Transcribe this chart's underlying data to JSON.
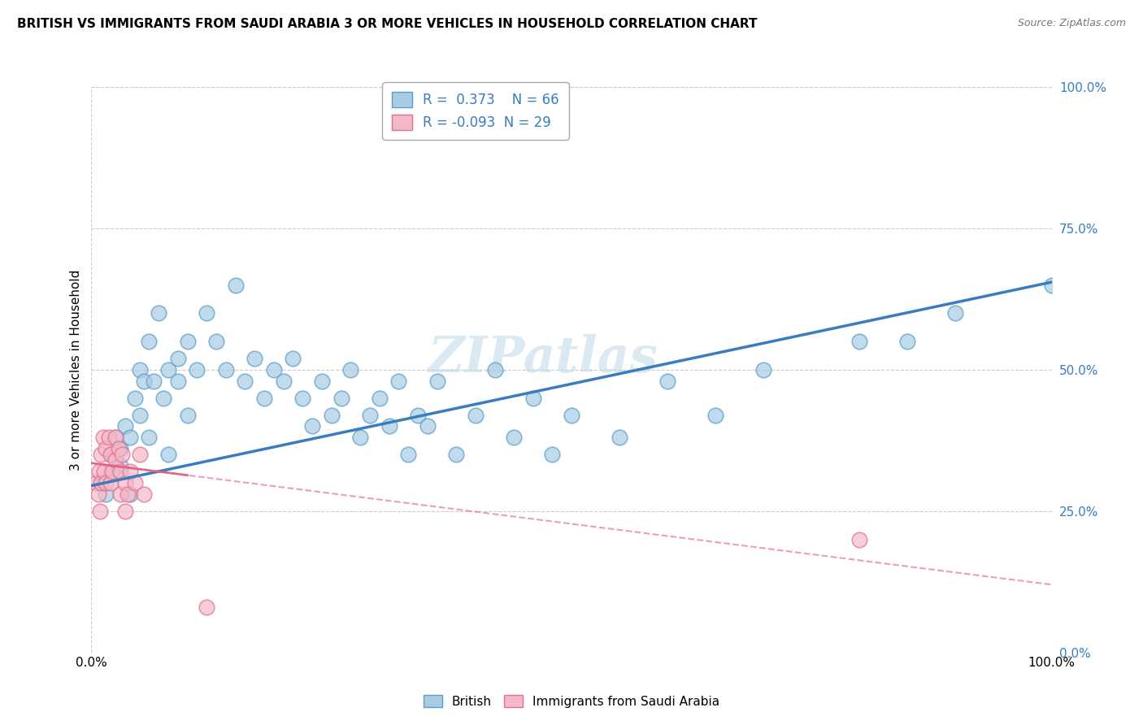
{
  "title": "BRITISH VS IMMIGRANTS FROM SAUDI ARABIA 3 OR MORE VEHICLES IN HOUSEHOLD CORRELATION CHART",
  "source": "Source: ZipAtlas.com",
  "ylabel": "3 or more Vehicles in Household",
  "x_min": 0.0,
  "x_max": 1.0,
  "y_min": 0.0,
  "y_max": 1.0,
  "legend_label1": "British",
  "legend_label2": "Immigrants from Saudi Arabia",
  "R1": 0.373,
  "N1": 66,
  "R2": -0.093,
  "N2": 29,
  "blue_color": "#a8cce4",
  "blue_edge_color": "#5a9ec9",
  "blue_line_color": "#3a7dbf",
  "pink_color": "#f4b8c8",
  "pink_edge_color": "#e07090",
  "pink_line_color": "#e06080",
  "grid_color": "#cccccc",
  "watermark": "ZIPatlas",
  "blue_scatter_x": [
    0.01,
    0.015,
    0.02,
    0.02,
    0.025,
    0.03,
    0.03,
    0.035,
    0.04,
    0.04,
    0.045,
    0.05,
    0.05,
    0.055,
    0.06,
    0.06,
    0.065,
    0.07,
    0.075,
    0.08,
    0.08,
    0.09,
    0.09,
    0.1,
    0.1,
    0.11,
    0.12,
    0.13,
    0.14,
    0.15,
    0.16,
    0.17,
    0.18,
    0.19,
    0.2,
    0.21,
    0.22,
    0.23,
    0.24,
    0.25,
    0.26,
    0.27,
    0.28,
    0.29,
    0.3,
    0.31,
    0.32,
    0.33,
    0.34,
    0.35,
    0.36,
    0.38,
    0.4,
    0.42,
    0.44,
    0.46,
    0.48,
    0.5,
    0.55,
    0.6,
    0.65,
    0.7,
    0.8,
    0.85,
    0.9,
    1.0
  ],
  "blue_scatter_y": [
    0.3,
    0.28,
    0.35,
    0.32,
    0.38,
    0.33,
    0.36,
    0.4,
    0.28,
    0.38,
    0.45,
    0.5,
    0.42,
    0.48,
    0.38,
    0.55,
    0.48,
    0.6,
    0.45,
    0.5,
    0.35,
    0.52,
    0.48,
    0.42,
    0.55,
    0.5,
    0.6,
    0.55,
    0.5,
    0.65,
    0.48,
    0.52,
    0.45,
    0.5,
    0.48,
    0.52,
    0.45,
    0.4,
    0.48,
    0.42,
    0.45,
    0.5,
    0.38,
    0.42,
    0.45,
    0.4,
    0.48,
    0.35,
    0.42,
    0.4,
    0.48,
    0.35,
    0.42,
    0.5,
    0.38,
    0.45,
    0.35,
    0.42,
    0.38,
    0.48,
    0.42,
    0.5,
    0.55,
    0.55,
    0.6,
    0.65
  ],
  "pink_scatter_x": [
    0.005,
    0.007,
    0.008,
    0.009,
    0.01,
    0.01,
    0.012,
    0.013,
    0.015,
    0.015,
    0.018,
    0.02,
    0.02,
    0.022,
    0.025,
    0.025,
    0.028,
    0.03,
    0.03,
    0.032,
    0.035,
    0.035,
    0.038,
    0.04,
    0.045,
    0.05,
    0.055,
    0.12,
    0.8
  ],
  "pink_scatter_y": [
    0.3,
    0.28,
    0.32,
    0.25,
    0.35,
    0.3,
    0.38,
    0.32,
    0.36,
    0.3,
    0.38,
    0.35,
    0.3,
    0.32,
    0.38,
    0.34,
    0.36,
    0.32,
    0.28,
    0.35,
    0.3,
    0.25,
    0.28,
    0.32,
    0.3,
    0.35,
    0.28,
    0.08,
    0.2
  ],
  "blue_line_x0": 0.0,
  "blue_line_y0": 0.295,
  "blue_line_x1": 1.0,
  "blue_line_y1": 0.655,
  "pink_line_x0": 0.0,
  "pink_line_y0": 0.335,
  "pink_line_x1": 1.0,
  "pink_line_y1": 0.12
}
